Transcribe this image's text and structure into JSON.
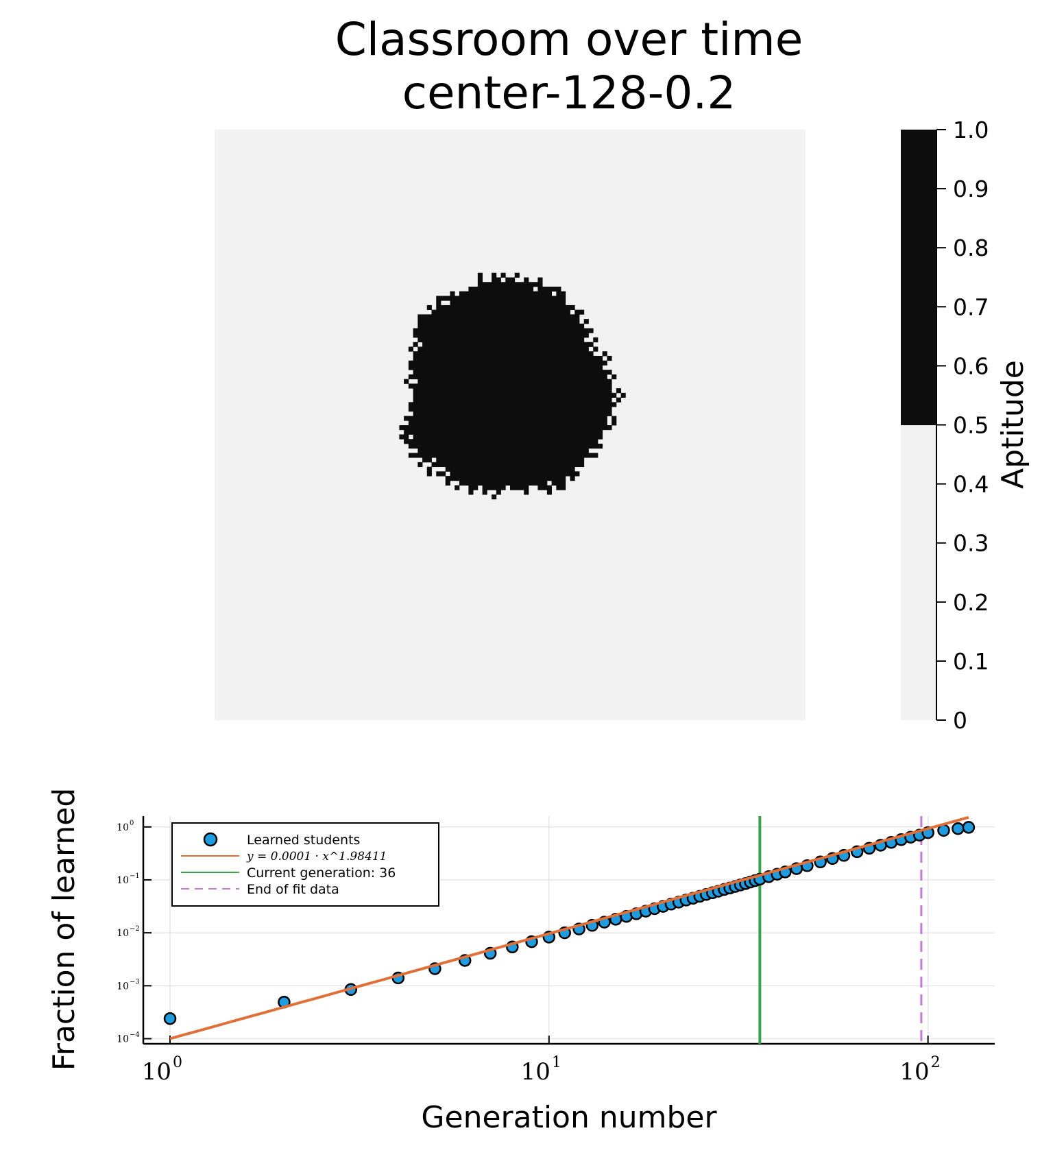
{
  "figure": {
    "title_line1": "Classroom over time",
    "title_line2": "center-128-0.2"
  },
  "colors": {
    "grid_bg": "#f2f2f2",
    "grid_fg": "#0d0d0d",
    "scatter": "#1f9be0",
    "fit": "#e0703a",
    "current": "#3aa24a",
    "end": "#c27ad2"
  },
  "colorbar": {
    "label": "Aptitude",
    "ticks": [
      "0",
      "0.1",
      "0.2",
      "0.3",
      "0.4",
      "0.5",
      "0.6",
      "0.7",
      "0.8",
      "0.9",
      "1.0"
    ],
    "threshold": 0.5
  },
  "chart_data": [
    {
      "type": "heatmap",
      "grid_size": 128,
      "values": "binary 0/1; roughly round learned region around the center",
      "colorbar_range": [
        0,
        1
      ]
    },
    {
      "type": "scatter",
      "xlabel": "Generation number",
      "ylabel": "Fraction of learned",
      "xscale": "log",
      "yscale": "log",
      "xlim": [
        0.85,
        150
      ],
      "ylim": [
        8e-05,
        1.6
      ],
      "x_ticks": [
        {
          "base": "10",
          "exp": "0"
        },
        {
          "base": "10",
          "exp": "1"
        },
        {
          "base": "10",
          "exp": "2"
        }
      ],
      "y_ticks": [
        {
          "base": "10",
          "exp": "−4"
        },
        {
          "base": "10",
          "exp": "−3"
        },
        {
          "base": "10",
          "exp": "−2"
        },
        {
          "base": "10",
          "exp": "−1"
        },
        {
          "base": "10",
          "exp": "0"
        }
      ],
      "legend": {
        "placement": "top-left",
        "scatter": "Learned students",
        "fit": "y = 0.0001 · x^1.98411",
        "current": "Current generation: 36",
        "end": "End of fit data"
      },
      "series": [
        {
          "name": "Learned students",
          "x": [
            1,
            2,
            3,
            4,
            5,
            6,
            7,
            8,
            9,
            10,
            11,
            12,
            13,
            14,
            15,
            16,
            17,
            18,
            19,
            20,
            21,
            22,
            23,
            24,
            25,
            26,
            27,
            28,
            29,
            30,
            31,
            32,
            33,
            34,
            35,
            36,
            38,
            40,
            42,
            45,
            48,
            52,
            56,
            60,
            65,
            70,
            75,
            80,
            85,
            90,
            95,
            100,
            110,
            120,
            128
          ],
          "y": [
            0.00024,
            0.00049,
            0.00085,
            0.0014,
            0.0021,
            0.003,
            0.0041,
            0.0054,
            0.0068,
            0.0083,
            0.01,
            0.0118,
            0.0138,
            0.0159,
            0.018,
            0.0204,
            0.0229,
            0.0256,
            0.0285,
            0.0316,
            0.0348,
            0.038,
            0.0415,
            0.045,
            0.049,
            0.053,
            0.057,
            0.061,
            0.066,
            0.07,
            0.075,
            0.08,
            0.085,
            0.091,
            0.097,
            0.103,
            0.115,
            0.128,
            0.141,
            0.163,
            0.185,
            0.218,
            0.253,
            0.29,
            0.34,
            0.395,
            0.45,
            0.51,
            0.575,
            0.64,
            0.7,
            0.78,
            0.86,
            0.93,
            0.98
          ]
        },
        {
          "name": "y = 0.0001 · x^1.98411",
          "coefficient": 0.0001,
          "exponent": 1.98411
        }
      ],
      "vlines": [
        {
          "name": "Current generation: 36",
          "x": 36
        },
        {
          "name": "End of fit data",
          "x": 96
        }
      ]
    }
  ]
}
